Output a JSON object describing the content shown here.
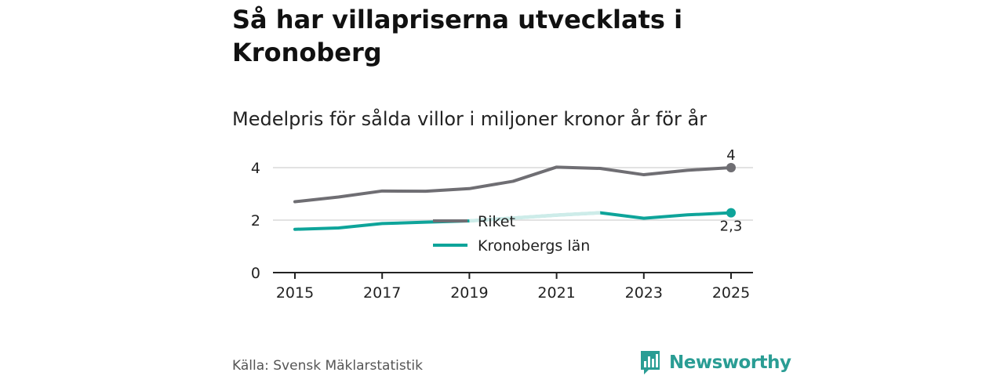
{
  "header": {
    "title": "Så har villapriserna utvecklats i Kronoberg",
    "subtitle": "Medelpris för sålda villor i miljoner kronor år för år"
  },
  "footer": {
    "source": "Källa: Svensk Mäklarstatistik",
    "brand": "Newsworthy"
  },
  "colors": {
    "riket": "#6f6e73",
    "kronoberg": "#0ea49a",
    "kronoberg_faded": "#cdece9",
    "grid": "#d9d9d9",
    "axis": "#222222",
    "brand": "#2a9d94"
  },
  "chart_data": {
    "type": "line",
    "title": "Medelpris för sålda villor i miljoner kronor år för år",
    "xlabel": "",
    "ylabel": "",
    "x": [
      2015,
      2016,
      2017,
      2018,
      2019,
      2020,
      2021,
      2022,
      2023,
      2024,
      2025
    ],
    "xticks": [
      "2015",
      "2017",
      "2019",
      "2021",
      "2023",
      "2025"
    ],
    "yticks": [
      "0",
      "2",
      "4"
    ],
    "ylim": [
      0,
      4
    ],
    "grid": true,
    "legend_position": "center",
    "series": [
      {
        "name": "Riket",
        "values": [
          2.7,
          2.88,
          3.11,
          3.1,
          3.2,
          3.48,
          4.02,
          3.97,
          3.73,
          3.9,
          4.0
        ],
        "end_label": "4"
      },
      {
        "name": "Kronobergs län",
        "values": [
          1.65,
          1.7,
          1.87,
          1.92,
          1.97,
          2.08,
          2.19,
          2.28,
          2.07,
          2.2,
          2.28
        ],
        "end_label": "2,3"
      }
    ]
  }
}
